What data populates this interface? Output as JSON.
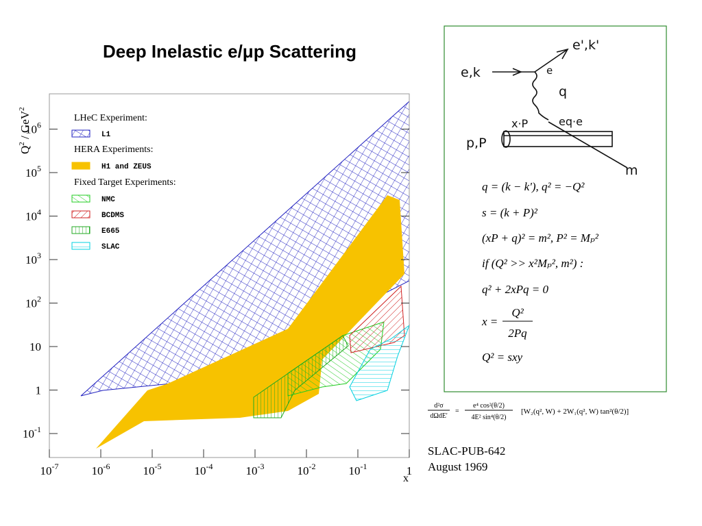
{
  "title": "Deep Inelastic e/μp Scattering",
  "plot": {
    "y_axis_label": {
      "base": "Q",
      "exp1": "2",
      "mid": " / GeV",
      "exp2": "2"
    },
    "x_axis_label": "x",
    "xticks": [
      {
        "base": "10",
        "exp": "-7"
      },
      {
        "base": "10",
        "exp": "-6"
      },
      {
        "base": "10",
        "exp": "-5"
      },
      {
        "base": "10",
        "exp": "-4"
      },
      {
        "base": "10",
        "exp": "-3"
      },
      {
        "base": "10",
        "exp": "-2"
      },
      {
        "base": "10",
        "exp": "-1"
      },
      {
        "base": "1"
      }
    ],
    "yticks": [
      {
        "base": "10",
        "exp": "-1"
      },
      {
        "base": "1"
      },
      {
        "base": "10"
      },
      {
        "base": "10",
        "exp": "2"
      },
      {
        "base": "10",
        "exp": "3"
      },
      {
        "base": "10",
        "exp": "4"
      },
      {
        "base": "10",
        "exp": "5"
      },
      {
        "base": "10",
        "exp": "6"
      }
    ],
    "legend": {
      "group1": "LHeC Experiment:",
      "l1": "L1",
      "group2": "HERA Experiments:",
      "hera": "H1 and ZEUS",
      "group3": "Fixed Target Experiments:",
      "nmc": "NMC",
      "bcdms": "BCDMS",
      "e665": "E665",
      "slac": "SLAC"
    }
  },
  "diagram": {
    "labels": {
      "in_e": "e,k",
      "out_e": "e',k'",
      "vertex": "e",
      "photon": "q",
      "xp": "x·P",
      "quark": "eq·e",
      "proton": "p,P",
      "remnant": "m"
    },
    "equations": [
      "q = (k − k'), q² = −Q²",
      "s = (k + P)²",
      "(xP + q)² = m², P² = Mₚ²",
      "if (Q² >> x²Mₚ², m²) :",
      "q² + 2xPq = 0"
    ],
    "fraction": {
      "lhs": "x =",
      "num": "Q²",
      "den": "2Pq"
    },
    "last": "Q² = sxy"
  },
  "cross_section": {
    "lhs_num": "d²σ",
    "lhs_den": "dΩdE'",
    "eq": "=",
    "num": "e⁴ cos²(θ/2)",
    "den": "4E² sin⁴(θ/2)",
    "bracket": "[W₂(q², W) + 2W₁(q², W) tan²(θ/2)]"
  },
  "reference": {
    "line1": "SLAC-PUB-642",
    "line2": "August 1969"
  }
}
